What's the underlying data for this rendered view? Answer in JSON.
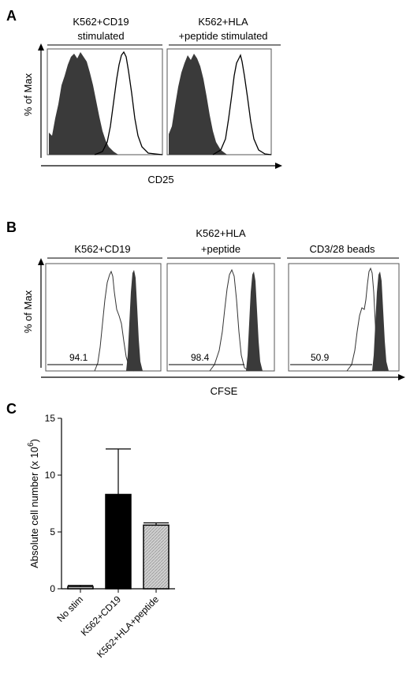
{
  "panels": [
    {
      "letter": "A",
      "histograms": [
        {
          "header_lines": [
            "K562+CD19",
            "stimulated"
          ]
        },
        {
          "header_lines": [
            "K562+HLA",
            "+peptide stimulated"
          ]
        }
      ],
      "ylabel": "% of Max",
      "xlabel": "CD25"
    },
    {
      "letter": "B",
      "histograms": [
        {
          "header_lines": [
            "K562+CD19"
          ],
          "gate_value": "94.1"
        },
        {
          "header_lines": [
            "K562+HLA",
            "+peptide"
          ],
          "gate_value": "98.4"
        },
        {
          "header_lines": [
            "CD3/28 beads"
          ],
          "gate_value": "50.9"
        }
      ],
      "ylabel": "% of Max",
      "xlabel": "CFSE"
    },
    {
      "letter": "C"
    }
  ],
  "chart_data": [
    {
      "type": "area",
      "panel": "A",
      "xlabel": "CD25",
      "ylabel": "% of Max",
      "series_style": [
        "filled dark (unstimulated)",
        "open outline (stimulated)"
      ],
      "fill_color": "#3a3a3a"
    },
    {
      "type": "area",
      "panel": "B",
      "xlabel": "CFSE",
      "ylabel": "% of Max",
      "categories": [
        "K562+CD19",
        "K562+HLA +peptide",
        "CD3/28 beads"
      ],
      "values": [
        94.1,
        98.4,
        50.9
      ],
      "fill_color": "#3a3a3a"
    },
    {
      "type": "bar",
      "panel": "C",
      "categories": [
        "No stim",
        "K562+CD19",
        "K562+HLA+peptide"
      ],
      "values": [
        0.2,
        8.3,
        5.6
      ],
      "errors": [
        0.1,
        4.0,
        0.2
      ],
      "ylabel": "Absolute cell number (x 10",
      "ylabel_exp": "6",
      "ylabel_close": ")",
      "ylim": [
        0,
        15
      ],
      "yticks": [
        0,
        5,
        10,
        15
      ],
      "bar_colors": [
        "#bdbdbd",
        "#000000",
        "#c8c8c8"
      ],
      "grid": false
    }
  ]
}
